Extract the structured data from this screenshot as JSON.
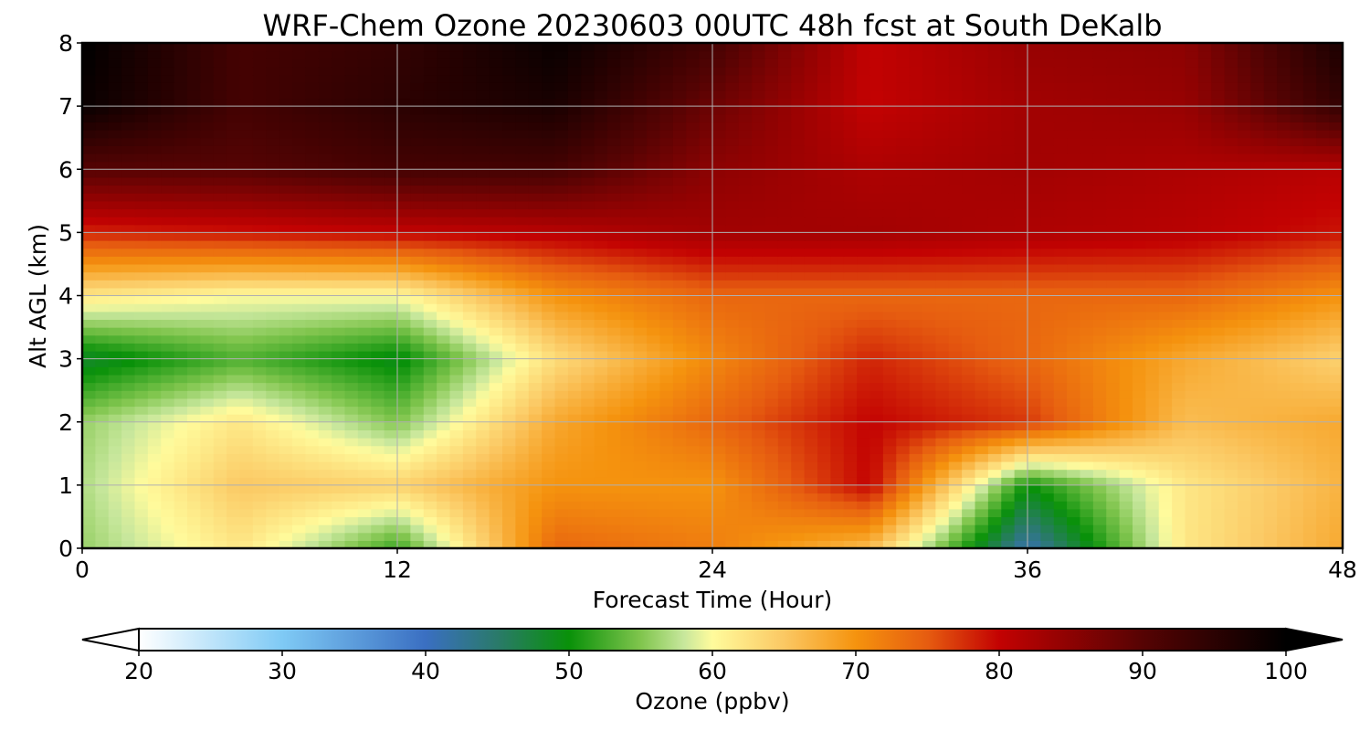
{
  "chart_data": {
    "type": "heatmap",
    "title": "WRF-Chem Ozone  20230603 00UTC 48h fcst at South DeKalb",
    "xlabel": "Forecast Time (Hour)",
    "ylabel": "Alt AGL (km)",
    "xlim": [
      0,
      48
    ],
    "ylim": [
      0,
      8
    ],
    "xticks": [
      0,
      12,
      24,
      36,
      48
    ],
    "yticks": [
      0,
      1,
      2,
      3,
      4,
      5,
      6,
      7,
      8
    ],
    "grid": true,
    "x": [
      0,
      6,
      12,
      18,
      24,
      30,
      36,
      42,
      48
    ],
    "y": [
      0,
      1,
      2,
      3,
      4,
      5,
      6,
      7,
      8
    ],
    "values": [
      [
        56,
        62,
        52,
        74,
        72,
        66,
        41,
        62,
        68
      ],
      [
        57,
        65,
        64,
        70,
        70,
        80,
        50,
        62,
        67
      ],
      [
        56,
        62,
        55,
        68,
        74,
        80,
        77,
        66,
        68
      ],
      [
        48,
        53,
        49,
        63,
        71,
        78,
        74,
        68,
        64
      ],
      [
        62,
        60,
        60,
        70,
        74,
        74,
        74,
        74,
        70
      ],
      [
        78,
        79,
        80,
        81,
        83,
        83,
        82,
        81,
        79
      ],
      [
        90,
        90,
        92,
        92,
        85,
        82,
        83,
        82,
        81
      ],
      [
        99,
        92,
        95,
        97,
        88,
        80,
        83,
        84,
        94
      ],
      [
        100,
        92,
        94,
        99,
        92,
        80,
        84,
        85,
        97
      ]
    ],
    "colorbar": {
      "label": "Ozone  (ppbv)",
      "min": 20,
      "max": 100,
      "ticks": [
        20,
        30,
        40,
        50,
        60,
        70,
        80,
        90,
        100
      ],
      "extend": "both",
      "stops": [
        {
          "value": 20,
          "color": "#ffffff"
        },
        {
          "value": 30,
          "color": "#7fcaf5"
        },
        {
          "value": 40,
          "color": "#3a6fc2"
        },
        {
          "value": 45,
          "color": "#2a7a6a"
        },
        {
          "value": 50,
          "color": "#099109"
        },
        {
          "value": 55,
          "color": "#80c54d"
        },
        {
          "value": 58,
          "color": "#c7e79c"
        },
        {
          "value": 60,
          "color": "#fffb9c"
        },
        {
          "value": 65,
          "color": "#fbc863"
        },
        {
          "value": 70,
          "color": "#f5930e"
        },
        {
          "value": 75,
          "color": "#e65c10"
        },
        {
          "value": 80,
          "color": "#c30202"
        },
        {
          "value": 90,
          "color": "#560303"
        },
        {
          "value": 100,
          "color": "#000000"
        }
      ]
    }
  }
}
